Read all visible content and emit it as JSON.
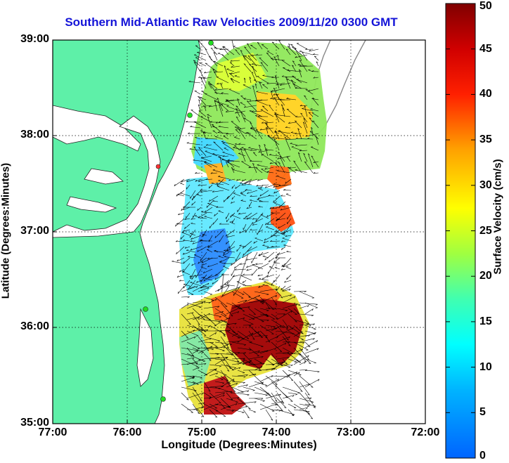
{
  "title": "Southern Mid-Atlantic Raw Velocities 2009/11/20 0300 GMT",
  "xlabel": "Longitude (Degrees:Minutes)",
  "ylabel": "Latitude (Degrees:Minutes)",
  "x_ticks": [
    "77:00",
    "76:00",
    "75:00",
    "74:00",
    "73:00",
    "72:00"
  ],
  "y_ticks": [
    "39:00",
    "38:00",
    "37:00",
    "36:00",
    "35:00"
  ],
  "colorbar": {
    "label": "Surface Velocity (cm/s)",
    "ticks": [
      "50",
      "45",
      "40",
      "35",
      "30",
      "25",
      "20",
      "15",
      "10",
      "5",
      "0"
    ]
  },
  "colors": {
    "title": "#1414d8",
    "land": "#5ef0a8",
    "velocity_low": "#1a66ff",
    "velocity_high": "#800000",
    "station": "#22dd22"
  }
}
